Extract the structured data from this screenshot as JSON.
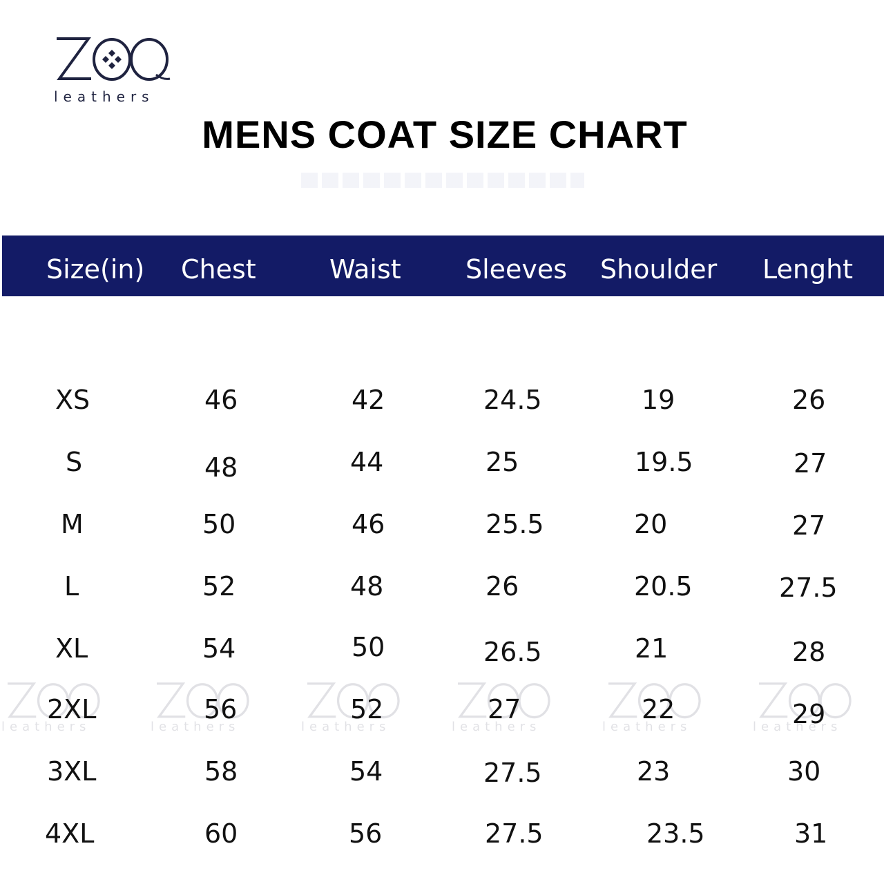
{
  "brand": {
    "logo_text": "ZOQ",
    "logo_subtext": "leathers",
    "navy": "#131b66"
  },
  "title": "MENS COAT SIZE CHART",
  "table": {
    "columns": [
      "Size(in)",
      "Chest",
      "Waist",
      "Sleeves",
      "Shoulder",
      "Lenght"
    ],
    "rows": [
      [
        "XS",
        "46",
        "42",
        "24.5",
        "19",
        "26"
      ],
      [
        "S",
        "48",
        "44",
        "25",
        "19.5",
        "27"
      ],
      [
        "M",
        "50",
        "46",
        "25.5",
        "20",
        "27"
      ],
      [
        "L",
        "52",
        "48",
        "26",
        "20.5",
        "27.5"
      ],
      [
        "XL",
        "54",
        "50",
        "26.5",
        "21",
        "28"
      ],
      [
        "2XL",
        "56",
        "52",
        "27",
        "22",
        "29"
      ],
      [
        "3XL",
        "58",
        "54",
        "27.5",
        "23",
        "30"
      ],
      [
        "4XL",
        "60",
        "56",
        "27.5",
        "23.5",
        "31"
      ]
    ]
  }
}
